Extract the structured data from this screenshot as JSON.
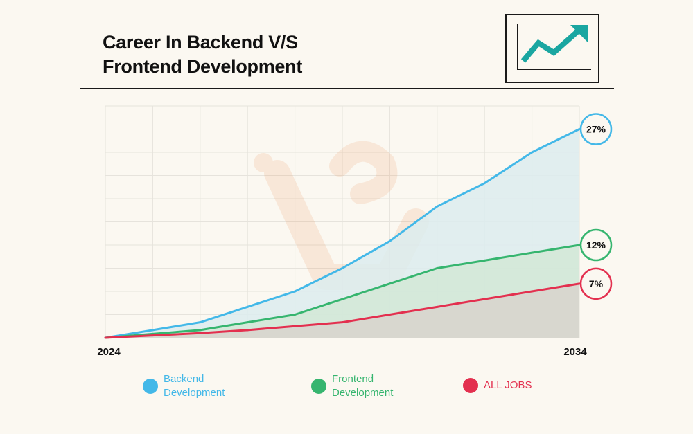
{
  "title_line1": "Career In Backend V/S",
  "title_line2": "Frontend Development",
  "icon": "trending-up-chart-icon",
  "colors": {
    "background": "#fbf8f1",
    "backend": "#43b8e8",
    "frontend": "#36b56f",
    "all_jobs": "#e3304f",
    "grid": "#e6e3dc"
  },
  "chart_data": {
    "type": "line",
    "x_start_label": "2024",
    "x_end_label": "2034",
    "x": [
      0,
      1,
      2,
      3,
      4,
      5,
      6,
      7,
      8,
      9,
      10
    ],
    "ylim": [
      0,
      30
    ],
    "grid": true,
    "series": [
      {
        "name": "Backend\nDevelopment",
        "key": "backend",
        "end_label": "27%",
        "values": [
          0,
          1,
          2,
          4,
          6,
          9,
          12.5,
          17,
          20,
          24,
          27
        ]
      },
      {
        "name": "Frontend\nDevelopment",
        "key": "frontend",
        "end_label": "12%",
        "values": [
          0,
          0.5,
          1,
          2,
          3,
          5,
          7,
          9,
          10,
          11,
          12
        ]
      },
      {
        "name": "ALL JOBS",
        "key": "all_jobs",
        "end_label": "7%",
        "values": [
          0,
          0.3,
          0.6,
          1,
          1.5,
          2,
          3,
          4,
          5,
          6,
          7
        ]
      }
    ]
  }
}
